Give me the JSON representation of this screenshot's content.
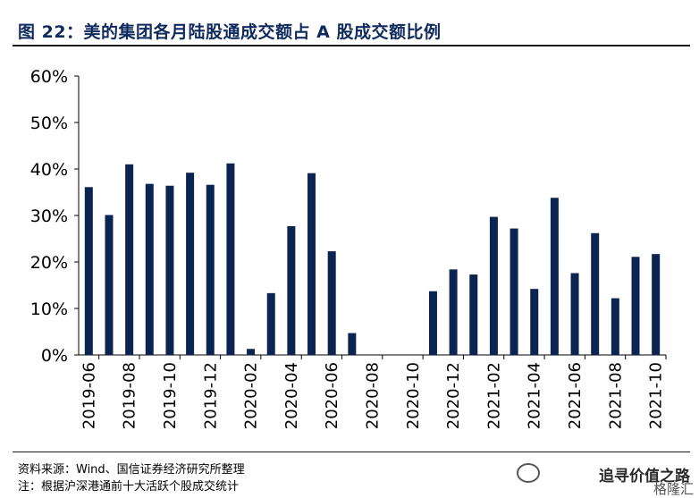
{
  "header": {
    "title": "图 22：美的集团各月陆股通成交额占 A 股成交额比例"
  },
  "chart_data": {
    "type": "bar",
    "categories": [
      "2019-06",
      "2019-07",
      "2019-08",
      "2019-09",
      "2019-10",
      "2019-11",
      "2019-12",
      "2020-01",
      "2020-02",
      "2020-03",
      "2020-04",
      "2020-05",
      "2020-06",
      "2020-07",
      "2020-08",
      "2020-09",
      "2020-10",
      "2020-11",
      "2020-12",
      "2021-01",
      "2021-02",
      "2021-03",
      "2021-04",
      "2021-05",
      "2021-06",
      "2021-07",
      "2021-08",
      "2021-09",
      "2021-10"
    ],
    "x_tick_labels": [
      "2019-06",
      "2019-08",
      "2019-10",
      "2019-12",
      "2020-02",
      "2020-04",
      "2020-06",
      "2020-08",
      "2020-10",
      "2020-12",
      "2021-02",
      "2021-04",
      "2021-06",
      "2021-08",
      "2021-10"
    ],
    "values": [
      36.1,
      30.1,
      41.0,
      36.8,
      36.4,
      39.2,
      36.6,
      41.2,
      1.3,
      13.3,
      27.7,
      39.1,
      22.3,
      4.7,
      0,
      0,
      0,
      13.7,
      18.4,
      17.3,
      29.7,
      27.2,
      14.2,
      33.8,
      17.6,
      26.2,
      12.2,
      21.1,
      21.7
    ],
    "y_ticks": [
      "60%",
      "50%",
      "40%",
      "30%",
      "20%",
      "10%",
      "0%"
    ],
    "ylim": [
      0,
      60
    ],
    "grid": false,
    "bar_color": "#0b2452",
    "title": "",
    "xlabel": "",
    "ylabel": ""
  },
  "footer": {
    "source": "资料来源：Wind、国信证券经济研究所整理",
    "note": "注：根据沪深港通前十大活跃个股成交统计"
  },
  "watermark": {
    "text": "追寻价值之路",
    "sub": "格隆汇"
  }
}
